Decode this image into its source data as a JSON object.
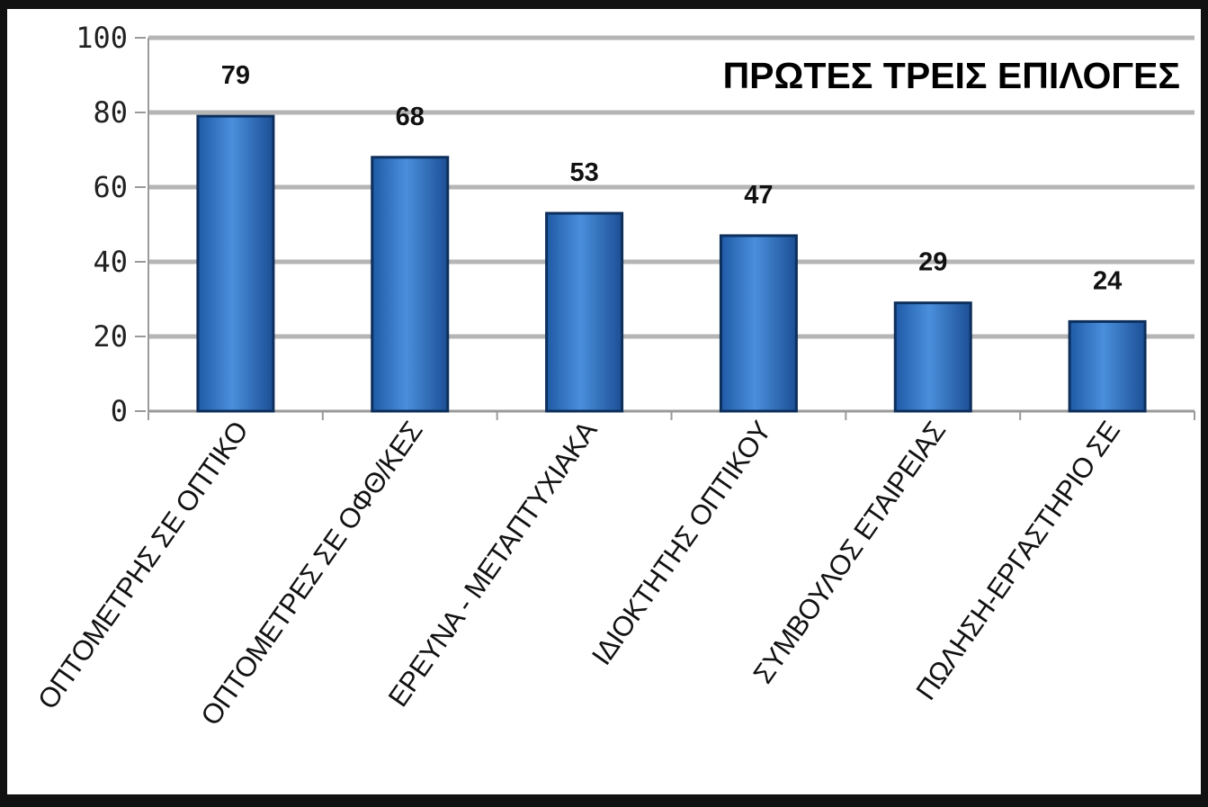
{
  "chart_data": {
    "type": "bar",
    "title": "ΠΡΩΤΕΣ ΤΡΕΙΣ ΕΠΙΛΟΓΕΣ",
    "xlabel": "",
    "ylabel": "",
    "ylim": [
      0,
      100
    ],
    "yticks": [
      "0",
      "20",
      "40",
      "60",
      "80",
      "100"
    ],
    "categories": [
      "ΟΠΤΟΜΕΤΡΗΣ ΣΕ ΟΠΤΙΚΟ",
      "ΟΠΤΟΜΕΤΡΕΣ ΣΕ ΟΦΘ/ΚΕΣ",
      "ΕΡΕΥΝΑ - ΜΕΤΑΠΤΥΧΙΑΚΑ",
      "ΙΔΙΟΚΤΗΤΗΣ ΟΠΤΙΚΟΥ",
      "ΣΥΜΒΟΥΛΟΣ ΕΤΑΙΡΕΙΑΣ",
      "ΠΩΛΗΣΗ-ΕΡΓΑΣΤΗΡΙΟ ΣΕ"
    ],
    "values": [
      79,
      68,
      53,
      47,
      29,
      24
    ],
    "data_labels": [
      "79",
      "68",
      "53",
      "47",
      "29",
      "24"
    ],
    "grid": true,
    "bar_color": "#3a7dcc",
    "bar_edge_color": "#0d2f5c"
  }
}
